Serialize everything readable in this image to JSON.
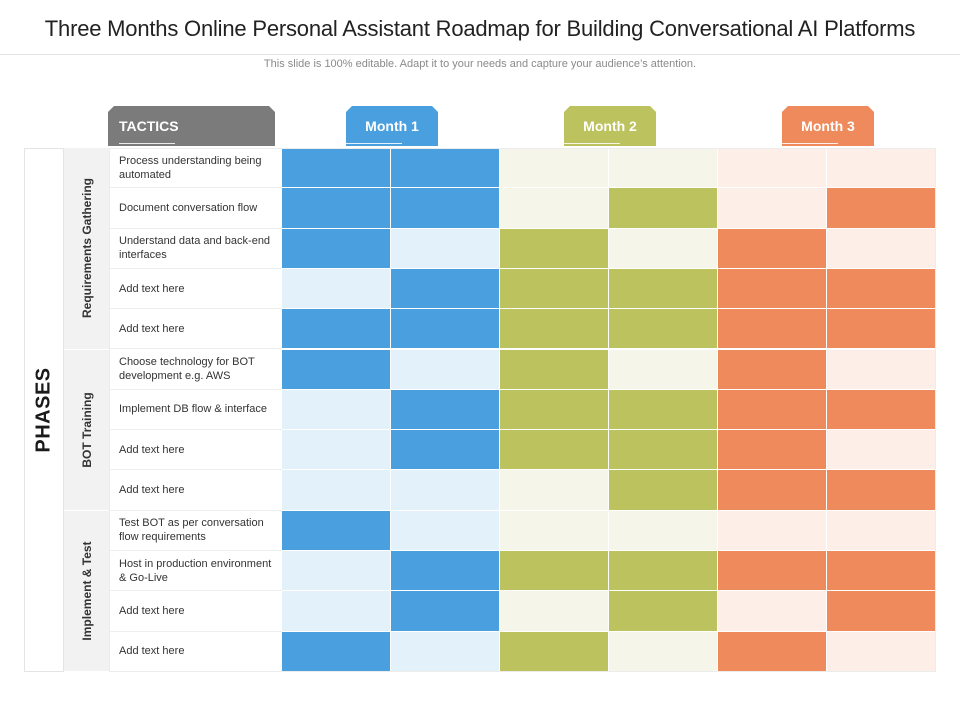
{
  "slide": {
    "title": "Three Months Online Personal Assistant Roadmap for Building Conversational AI Platforms",
    "subtitle": "This slide is 100% editable. Adapt it to your needs and capture your audience’s attention."
  },
  "header": {
    "tactics": "TACTICS",
    "months": [
      "Month 1",
      "Month 2",
      "Month 3"
    ]
  },
  "phases_label": "PHASES",
  "colors": {
    "month1_dark": "#4a9fdf",
    "month1_light": "#e3f1fa",
    "month2_dark": "#bcc25e",
    "month2_light": "#f5f5ea",
    "month3_dark": "#ee8a5c",
    "month3_light": "#fdeee7"
  },
  "groups": [
    {
      "name": "Requirements Gathering",
      "tasks": [
        {
          "label": "Process understanding being automated",
          "active": [
            1,
            1,
            0,
            0,
            0,
            0
          ]
        },
        {
          "label": "Document conversation flow",
          "active": [
            1,
            1,
            0,
            1,
            0,
            1
          ]
        },
        {
          "label": "Understand data and back-end interfaces",
          "active": [
            1,
            0,
            1,
            0,
            1,
            0
          ]
        },
        {
          "label": "Add text here",
          "active": [
            0,
            1,
            1,
            1,
            1,
            1
          ]
        },
        {
          "label": "Add text here",
          "active": [
            1,
            1,
            1,
            1,
            1,
            1
          ]
        }
      ]
    },
    {
      "name": "BOT Training",
      "tasks": [
        {
          "label": "Choose technology for BOT development e.g. AWS",
          "active": [
            1,
            0,
            1,
            0,
            1,
            0
          ]
        },
        {
          "label": "Implement DB flow  & interface",
          "active": [
            0,
            1,
            1,
            1,
            1,
            1
          ]
        },
        {
          "label": "Add text here",
          "active": [
            0,
            1,
            1,
            1,
            1,
            0
          ]
        },
        {
          "label": "Add text here",
          "active": [
            0,
            0,
            0,
            1,
            1,
            1
          ]
        }
      ]
    },
    {
      "name": "Implement & Test",
      "tasks": [
        {
          "label": "Test BOT as per conversation flow requirements",
          "active": [
            1,
            0,
            0,
            0,
            0,
            0
          ]
        },
        {
          "label": "Host in production environment & Go-Live",
          "active": [
            0,
            1,
            1,
            1,
            1,
            1
          ]
        },
        {
          "label": "Add text here",
          "active": [
            0,
            1,
            0,
            1,
            0,
            1
          ]
        },
        {
          "label": "Add text here",
          "active": [
            1,
            0,
            1,
            0,
            1,
            0
          ]
        }
      ]
    }
  ]
}
